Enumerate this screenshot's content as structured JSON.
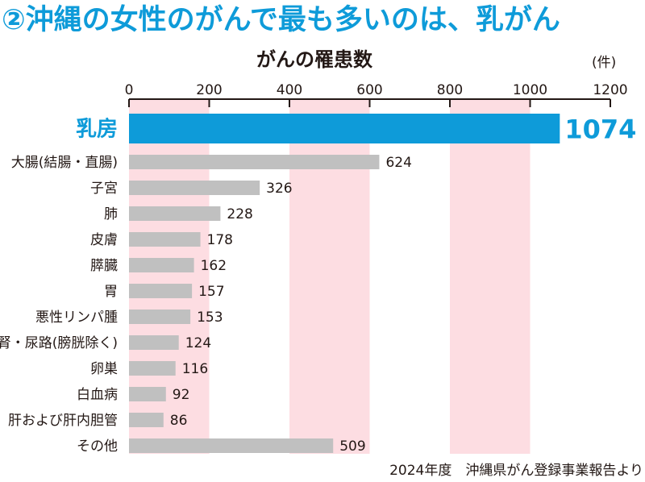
{
  "header": {
    "title": "②沖縄の女性のがんで最も多いのは、乳がん"
  },
  "chart_data": {
    "type": "bar",
    "orientation": "horizontal",
    "title": "がんの罹患数",
    "unit_label": "(件)",
    "xlim": [
      0,
      1200
    ],
    "xticks": [
      0,
      200,
      400,
      600,
      800,
      1000,
      1200
    ],
    "xtick_labels": [
      "0",
      "200",
      "400",
      "600",
      "800",
      "1000",
      "1200"
    ],
    "shaded_bands": [
      [
        0,
        200
      ],
      [
        400,
        600
      ],
      [
        800,
        1000
      ]
    ],
    "categories": [
      "乳房",
      "大腸(結腸・直腸)",
      "子宮",
      "肺",
      "皮膚",
      "膵臓",
      "胃",
      "悪性リンパ腫",
      "腎・尿路(膀胱除く)",
      "卵巣",
      "白血病",
      "肝および肝内胆管",
      "その他"
    ],
    "values": [
      1074,
      624,
      326,
      228,
      178,
      162,
      157,
      153,
      124,
      116,
      92,
      86,
      509
    ],
    "value_labels": [
      "1074",
      "624",
      "326",
      "228",
      "178",
      "162",
      "157",
      "153",
      "124",
      "116",
      "92",
      "86",
      "509"
    ],
    "highlight_index": 0,
    "colors": {
      "highlight": "#0e9bd9",
      "bar": "#c0c0c0",
      "band": "#fddde2",
      "axis": "#231815"
    }
  },
  "footer": {
    "source": "2024年度　沖縄県がん登録事業報告より"
  }
}
